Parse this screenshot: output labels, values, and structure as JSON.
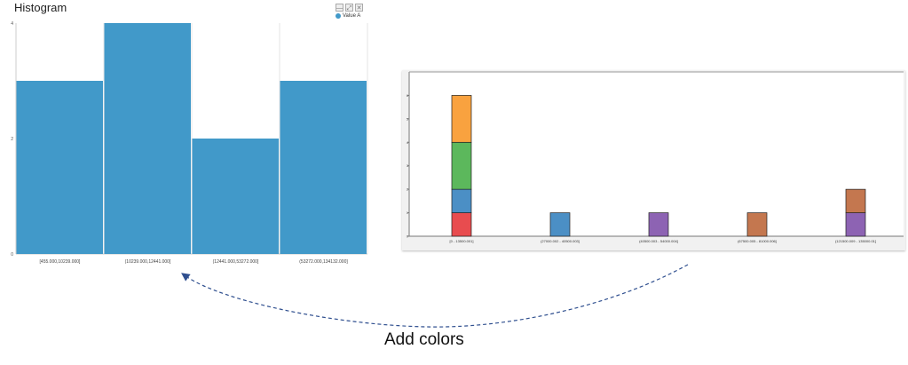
{
  "left_chart": {
    "title": "Histogram",
    "window_buttons": [
      "—",
      "⤢",
      "✕"
    ],
    "legend_label": "Value A",
    "color": "#4199c9"
  },
  "caption": "Add colors",
  "chart_data": [
    {
      "type": "bar",
      "title": "Histogram",
      "categories": [
        "[455.000,10239.000]",
        "(10239.000,12441.000]",
        "(12441.000,53272.000]",
        "(53272.000,134132.000]"
      ],
      "series": [
        {
          "name": "Value A",
          "values": [
            3,
            4,
            2,
            3
          ],
          "color": "#4199c9"
        }
      ],
      "yticks": [
        "0",
        "2",
        "4"
      ],
      "ylim": [
        0,
        4
      ],
      "grid": true,
      "legend": "top-right"
    },
    {
      "type": "bar",
      "stacked": true,
      "categories": [
        "[0 - 13500.001]",
        "(27000.002 - 40500.003]",
        "(40500.003 - 54000.004]",
        "(67500.005 - 81000.006]",
        "(121500.009 - 135000.01]"
      ],
      "series": [
        {
          "values": [
            1,
            0,
            0,
            0,
            0
          ],
          "color": "#e84c4f"
        },
        {
          "values": [
            1,
            1,
            0,
            0,
            0
          ],
          "color": "#4b8fc5"
        },
        {
          "values": [
            2,
            0,
            0,
            0,
            0
          ],
          "color": "#5cb85c"
        },
        {
          "values": [
            2,
            0,
            0,
            0,
            0
          ],
          "color": "#f9a23f"
        },
        {
          "values": [
            0,
            0,
            1,
            0,
            1
          ],
          "color": "#8d63b3"
        },
        {
          "values": [
            0,
            0,
            0,
            1,
            1
          ],
          "color": "#c4774f"
        }
      ],
      "yticks": [
        "0",
        "1",
        "2",
        "3",
        "4",
        "5",
        "6"
      ],
      "ylim": [
        0,
        7
      ],
      "grid": false
    }
  ]
}
